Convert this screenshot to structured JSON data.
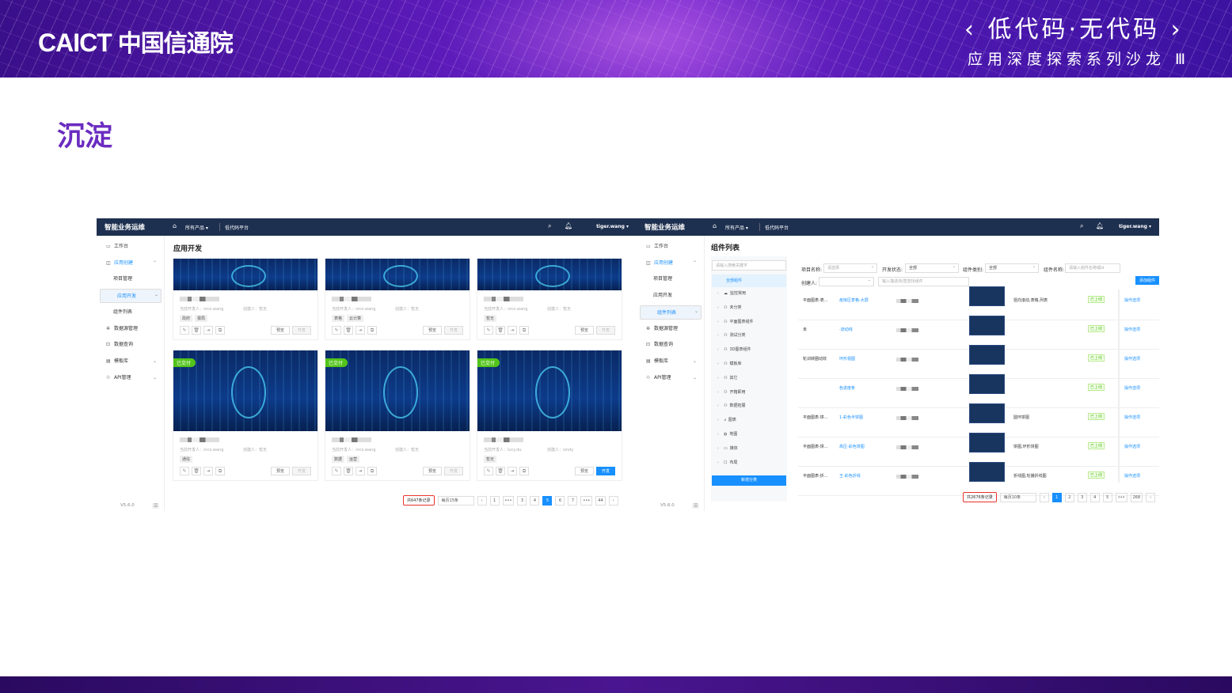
{
  "slide": {
    "logo": "CAICT",
    "logo_cn": "中国信通院",
    "slogan_title": "‹ 低代码·无代码 ›",
    "slogan_subtitle": "应用深度探索系列沙龙 Ⅲ",
    "title": "沉淀",
    "colors": {
      "banner": "#5a1ab8",
      "title": "#6a2cc0",
      "accent": "#1890ff",
      "highlight": "#e8332a"
    }
  },
  "left_app": {
    "brand": "智能业务运维",
    "product_menu": "所有产品 ▾",
    "platform": "低代码平台",
    "user": "tiger.wang ▾",
    "sidebar": [
      {
        "icon": "monitor-icon",
        "glyph": "▭",
        "label": "工作台"
      },
      {
        "icon": "app-create-icon",
        "glyph": "◫",
        "label": "应用创建",
        "expanded": true
      },
      {
        "label": "项目管理",
        "sub": true
      },
      {
        "label": "应用开发",
        "sub": true,
        "selected": true
      },
      {
        "label": "组件列表",
        "sub": true
      },
      {
        "icon": "datasource-icon",
        "glyph": "✲",
        "label": "数据源管理"
      },
      {
        "icon": "query-icon",
        "glyph": "⊡",
        "label": "数据查询"
      },
      {
        "icon": "template-icon",
        "glyph": "▤",
        "label": "模板库",
        "chevron": true
      },
      {
        "icon": "api-icon",
        "glyph": "♲",
        "label": "API管理",
        "chevron": true
      }
    ],
    "version": "V5.6.0",
    "page_title": "应用开发",
    "cards": [
      {
        "developer": "当前开发人：nico.wang",
        "creator": "创建人：暂无",
        "tags": [
          "政府",
          "报局"
        ],
        "delivered": false,
        "preview": "预览",
        "develop": "开发",
        "develop_enabled": false
      },
      {
        "developer": "当前开发人：nico.wang",
        "creator": "创建人：暂无",
        "tags": [
          "表格",
          "云计算"
        ],
        "delivered": false,
        "preview": "预览",
        "develop": "开发",
        "develop_enabled": false
      },
      {
        "developer": "当前开发人：nico.wang",
        "creator": "创建人：暂无",
        "tags": [
          "暂无"
        ],
        "delivered": false,
        "preview": "预览",
        "develop": "开发",
        "develop_enabled": false
      },
      {
        "developer": "当前开发人：nico.wang",
        "creator": "创建人：暂无",
        "tags": [
          "通信"
        ],
        "delivered": true,
        "preview": "预览",
        "develop": "开发",
        "develop_enabled": false
      },
      {
        "developer": "当前开发人：nico.wang",
        "creator": "创建人：暂无",
        "tags": [
          "数据",
          "运营"
        ],
        "delivered": true,
        "preview": "预览",
        "develop": "开发",
        "develop_enabled": false
      },
      {
        "developer": "当前开发人：lucy.du",
        "creator": "创建人：sindy",
        "tags": [
          "暂无"
        ],
        "delivered": true,
        "preview": "预览",
        "develop": "开发",
        "develop_enabled": true
      }
    ],
    "delivered_label": "已交付",
    "pagination": {
      "total": "共647条记录",
      "page_size": "每页15条",
      "pages": [
        "‹",
        "1",
        "•••",
        "3",
        "4",
        "5",
        "6",
        "7",
        "•••",
        "44",
        "›"
      ],
      "current": "5"
    }
  },
  "right_app": {
    "brand": "智能业务运维",
    "product_menu": "所有产品 ▾",
    "platform": "低代码平台",
    "user": "tiger.wang ▾",
    "sidebar": [
      {
        "icon": "monitor-icon",
        "glyph": "▭",
        "label": "工作台"
      },
      {
        "icon": "app-create-icon",
        "glyph": "◫",
        "label": "应用创建",
        "expanded": true
      },
      {
        "label": "项目管理",
        "sub": true
      },
      {
        "label": "应用开发",
        "sub": true
      },
      {
        "label": "组件列表",
        "sub": true,
        "selected": true
      },
      {
        "icon": "datasource-icon",
        "glyph": "✲",
        "label": "数据源管理"
      },
      {
        "icon": "query-icon",
        "glyph": "⊡",
        "label": "数据查询"
      },
      {
        "icon": "template-icon",
        "glyph": "▤",
        "label": "模板库",
        "chevron": true
      },
      {
        "icon": "api-icon",
        "glyph": "♲",
        "label": "API管理",
        "chevron": true
      }
    ],
    "version": "V5.6.0",
    "page_title": "组件列表",
    "category_search_placeholder": "请输入搜索关键字",
    "all_components": "全部组件",
    "categories": [
      {
        "glyph": "☁",
        "label": "监控常用"
      },
      {
        "glyph": "⚇",
        "label": "未分类"
      },
      {
        "glyph": "⚇",
        "label": "平面图表组件"
      },
      {
        "glyph": "⚇",
        "label": "测试分类"
      },
      {
        "glyph": "⚇",
        "label": "3D图表组件"
      },
      {
        "glyph": "⚇",
        "label": "模板库"
      },
      {
        "glyph": "⚇",
        "label": "其它"
      },
      {
        "glyph": "⚇",
        "label": "开箱即用"
      },
      {
        "glyph": "⚇",
        "label": "数据拓展"
      },
      {
        "glyph": "⩘",
        "label": "图表"
      },
      {
        "glyph": "◍",
        "label": "地图"
      },
      {
        "glyph": "▭",
        "label": "媒体"
      },
      {
        "glyph": "☐",
        "label": "布局"
      }
    ],
    "add_category": "新增分类",
    "filters": {
      "project_label": "项目名称:",
      "project_value": "请选择",
      "status_label": "开发状态:",
      "status_value": "全部",
      "category_label": "组件类别:",
      "category_value": "全部",
      "name_label": "组件名称:",
      "name_placeholder": "请输入组件名称或id",
      "creator_label": "创建人:",
      "creator_value": "",
      "desc_placeholder": "输入描述/标签查找组件"
    },
    "add_component": "添加组件",
    "rows": [
      {
        "category": "平面图表-表...",
        "name": "疫库区表格-大屏",
        "tags": "竖向滚动,表格,列表",
        "status": "已上线",
        "action": "操作选项"
      },
      {
        "category": "未",
        "name": "-流动线",
        "tags": "",
        "status": "已上线",
        "action": "操作选项"
      },
      {
        "category": "轮训转圈动效",
        "name": "环形视图",
        "tags": "",
        "status": "已上线",
        "action": "操作选项"
      },
      {
        "category": "",
        "name": "色进度条",
        "tags": "",
        "status": "已上线",
        "action": "操作选项"
      },
      {
        "category": "平面图表-饼...",
        "name": "1-彩色半饼图",
        "tags": "圆环饼图",
        "status": "已上线",
        "action": "操作选项"
      },
      {
        "category": "平面图表-饼...",
        "name": "高压-彩色饼图",
        "tags": "饼图,环形饼图",
        "status": "已上线",
        "action": "操作选项"
      },
      {
        "category": "平面图表-折...",
        "name": "王-彩色折线",
        "tags": "折线图,轮播折线图",
        "status": "已上线",
        "action": "操作选项"
      }
    ],
    "pagination": {
      "total": "共2676条记录",
      "page_size": "每页10条",
      "pages": [
        "‹",
        "1",
        "2",
        "3",
        "4",
        "5",
        "•••",
        "268",
        "›"
      ],
      "current": "1"
    }
  }
}
